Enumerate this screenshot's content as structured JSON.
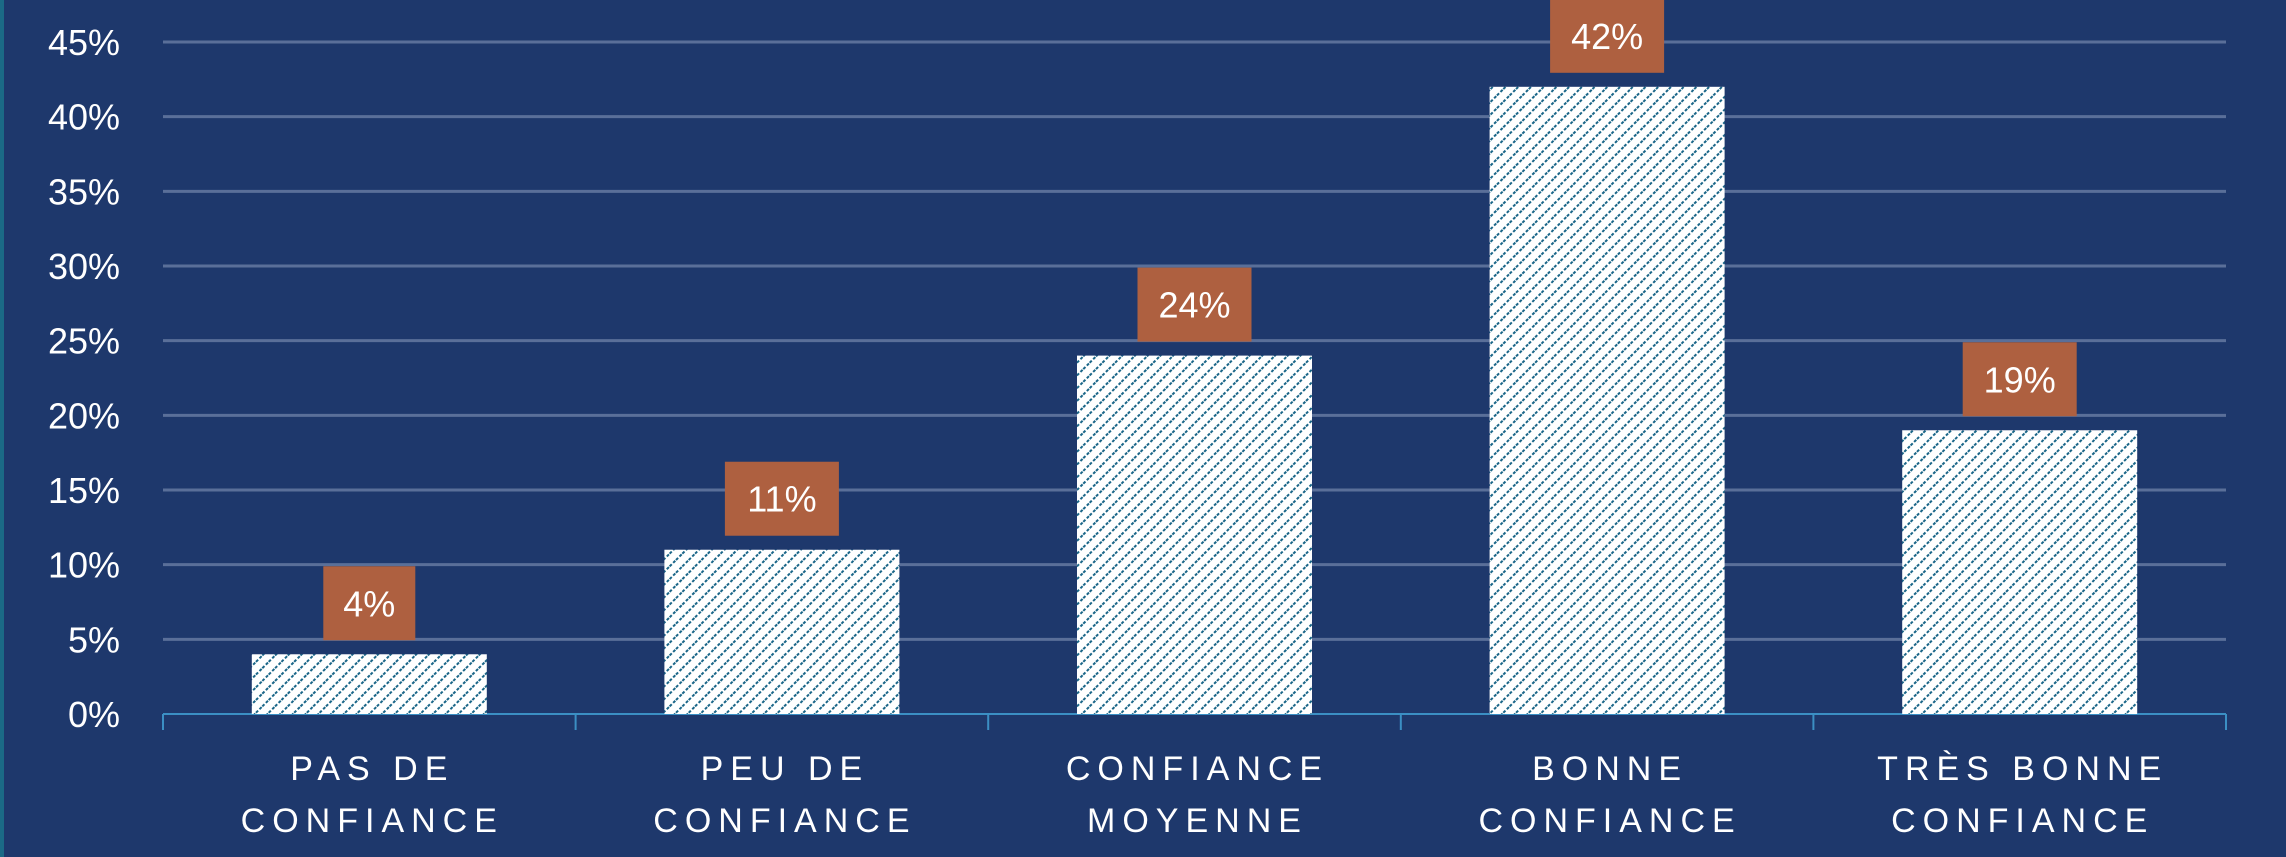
{
  "chart_data": {
    "type": "bar",
    "title": "",
    "xlabel": "",
    "ylabel": "",
    "categories": [
      [
        "PAS DE",
        "CONFIANCE"
      ],
      [
        "PEU DE",
        "CONFIANCE"
      ],
      [
        "CONFIANCE",
        "MOYENNE"
      ],
      [
        "BONNE",
        "CONFIANCE"
      ],
      [
        "TRÈS BONNE",
        "CONFIANCE"
      ]
    ],
    "values": [
      4,
      11,
      24,
      42,
      19
    ],
    "data_labels": [
      "4%",
      "11%",
      "24%",
      "42%",
      "19%"
    ],
    "ylim": [
      0,
      45
    ],
    "yticks": [
      "0%",
      "5%",
      "10%",
      "15%",
      "20%",
      "25%",
      "30%",
      "35%",
      "40%",
      "45%"
    ],
    "grid": true,
    "colors": {
      "background": "#1e386c",
      "hatch": "#1a6688",
      "bar": "#ffffff",
      "label_bg": "#ae6040",
      "grid": "#5a6f99",
      "axis": "#3b8fc4"
    }
  }
}
